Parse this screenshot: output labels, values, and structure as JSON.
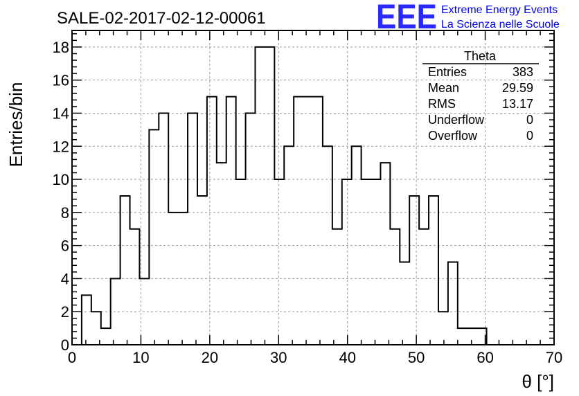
{
  "title": "SALE-02-2017-02-12-00061",
  "logo": {
    "mark": "EEE",
    "line1": "Extreme Energy Events",
    "line2": "La Scienza nelle Scuole",
    "color": "#1a1aff"
  },
  "stats_box": {
    "title": "Theta",
    "rows": [
      {
        "label": "Entries",
        "value": "383"
      },
      {
        "label": "Mean",
        "value": "29.59"
      },
      {
        "label": "RMS",
        "value": "13.17"
      },
      {
        "label": "Underflow",
        "value": "0"
      },
      {
        "label": "Overflow",
        "value": "0"
      }
    ]
  },
  "chart_data": {
    "type": "histogram",
    "title": "SALE-02-2017-02-12-00061",
    "xlabel": "θ [°]",
    "ylabel": "Entries/bin",
    "xlim": [
      0,
      70
    ],
    "ylim": [
      0,
      19
    ],
    "xticks": [
      0,
      10,
      20,
      30,
      40,
      50,
      60,
      70
    ],
    "yticks": [
      0,
      2,
      4,
      6,
      8,
      10,
      12,
      14,
      16,
      18
    ],
    "grid": true,
    "line_color": "#000000",
    "bin_edges": [
      1.4,
      2.8,
      4.2,
      5.6,
      7.0,
      8.4,
      9.8,
      11.2,
      12.6,
      14.0,
      15.4,
      16.8,
      18.2,
      19.6,
      21.0,
      22.4,
      23.8,
      25.2,
      26.6,
      28.0,
      29.4,
      30.8,
      32.2,
      33.6,
      35.0,
      36.4,
      37.8,
      39.2,
      40.6,
      42.0,
      43.4,
      44.8,
      46.2,
      47.6,
      49.0,
      50.4,
      51.8,
      53.2,
      54.6,
      56.0,
      57.4,
      58.8,
      60.2
    ],
    "counts": [
      3,
      2,
      1,
      4,
      9,
      7,
      4,
      13,
      14,
      8,
      8,
      14,
      9,
      15,
      11,
      15,
      10,
      14,
      18,
      18,
      10,
      12,
      15,
      15,
      15,
      12,
      7,
      10,
      12,
      10,
      10,
      11,
      7,
      5,
      9,
      7,
      9,
      2,
      5,
      1,
      1,
      1
    ]
  }
}
